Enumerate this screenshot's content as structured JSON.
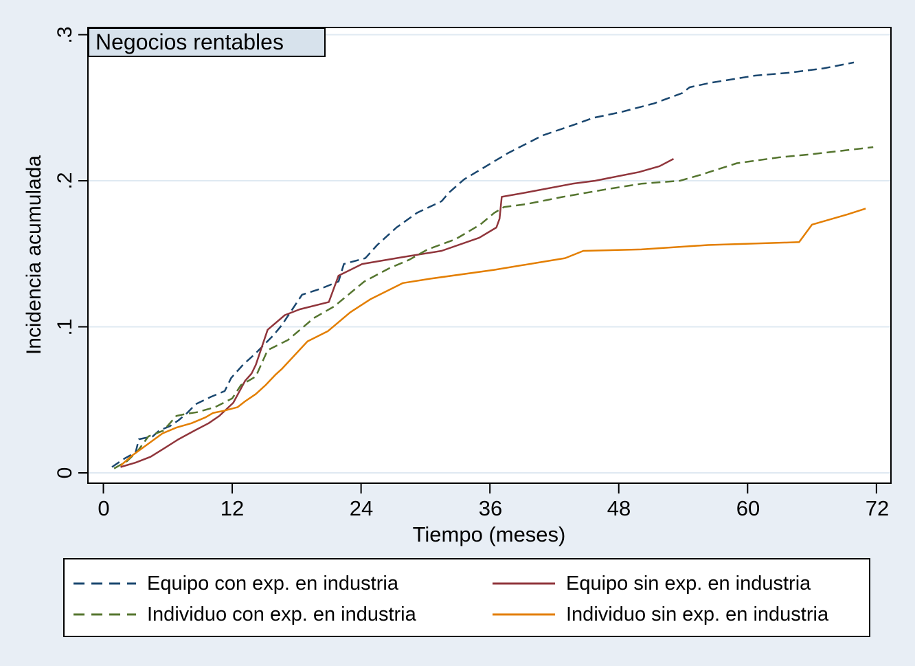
{
  "figure": {
    "title": "Negocios rentables",
    "background": "#e8eef5",
    "plot_background": "#ffffff",
    "title_box_fill": "#d7e2ec",
    "grid_color": "#dfe9f2",
    "axis_color": "#000000"
  },
  "axes": {
    "x": {
      "label": "Tiempo (meses)",
      "ticks": [
        "0",
        "12",
        "24",
        "36",
        "48",
        "60",
        "72"
      ],
      "tick_values": [
        0,
        12,
        24,
        36,
        48,
        60,
        72
      ]
    },
    "y": {
      "label": "Incidencia acumulada",
      "ticks": [
        "0",
        ".1",
        ".2",
        ".3"
      ],
      "tick_values": [
        0,
        0.1,
        0.2,
        0.3
      ]
    }
  },
  "chart_data": {
    "type": "line",
    "title": "Negocios rentables",
    "xlabel": "Tiempo (meses)",
    "ylabel": "Incidencia acumulada",
    "xlim": [
      -1.4,
      73.3
    ],
    "ylim": [
      -0.007,
      0.305
    ],
    "grid": true,
    "legend_position": "bottom",
    "legend_columns": 2,
    "series": [
      {
        "id": "equipo-con-exp",
        "name": "Equipo con exp. en industria",
        "color": "#1a476f",
        "style": "dashed",
        "points": [
          [
            0.8,
            0.004
          ],
          [
            2,
            0.01
          ],
          [
            3,
            0.014
          ],
          [
            3.3,
            0.023
          ],
          [
            4.6,
            0.025
          ],
          [
            5.2,
            0.029
          ],
          [
            6.2,
            0.032
          ],
          [
            7,
            0.036
          ],
          [
            7.8,
            0.041
          ],
          [
            8.6,
            0.047
          ],
          [
            10,
            0.052
          ],
          [
            11.3,
            0.056
          ],
          [
            11.9,
            0.065
          ],
          [
            13,
            0.074
          ],
          [
            14.2,
            0.082
          ],
          [
            15.8,
            0.094
          ],
          [
            16.6,
            0.101
          ],
          [
            17.6,
            0.112
          ],
          [
            18.5,
            0.122
          ],
          [
            20.2,
            0.126
          ],
          [
            21.9,
            0.131
          ],
          [
            22.4,
            0.143
          ],
          [
            24.4,
            0.147
          ],
          [
            25.5,
            0.156
          ],
          [
            27.3,
            0.168
          ],
          [
            29.2,
            0.178
          ],
          [
            31.5,
            0.186
          ],
          [
            32.2,
            0.192
          ],
          [
            33.6,
            0.201
          ],
          [
            35.2,
            0.208
          ],
          [
            37.7,
            0.219
          ],
          [
            40.9,
            0.231
          ],
          [
            44.1,
            0.239
          ],
          [
            45.6,
            0.243
          ],
          [
            48.2,
            0.247
          ],
          [
            51.3,
            0.253
          ],
          [
            53.9,
            0.26
          ],
          [
            54.6,
            0.264
          ],
          [
            56.5,
            0.267
          ],
          [
            60.7,
            0.272
          ],
          [
            63.9,
            0.274
          ],
          [
            67.1,
            0.277
          ],
          [
            69.9,
            0.281
          ]
        ]
      },
      {
        "id": "equipo-sin-exp",
        "name": "Equipo sin exp. en industria",
        "color": "#90353b",
        "style": "solid",
        "points": [
          [
            1.6,
            0.004
          ],
          [
            3,
            0.007
          ],
          [
            4.4,
            0.011
          ],
          [
            5.7,
            0.017
          ],
          [
            7,
            0.023
          ],
          [
            8.5,
            0.029
          ],
          [
            9.8,
            0.034
          ],
          [
            10.8,
            0.039
          ],
          [
            12.1,
            0.048
          ],
          [
            13.2,
            0.063
          ],
          [
            13.8,
            0.068
          ],
          [
            14.2,
            0.074
          ],
          [
            15.3,
            0.098
          ],
          [
            16.9,
            0.108
          ],
          [
            18.3,
            0.112
          ],
          [
            21,
            0.117
          ],
          [
            21.9,
            0.135
          ],
          [
            24.1,
            0.143
          ],
          [
            28.1,
            0.148
          ],
          [
            31.5,
            0.152
          ],
          [
            35,
            0.161
          ],
          [
            36.6,
            0.168
          ],
          [
            36.9,
            0.174
          ],
          [
            37.1,
            0.189
          ],
          [
            39.4,
            0.192
          ],
          [
            43.7,
            0.198
          ],
          [
            45.8,
            0.2
          ],
          [
            49.9,
            0.206
          ],
          [
            51.8,
            0.21
          ],
          [
            53.1,
            0.215
          ]
        ]
      },
      {
        "id": "individuo-con-exp",
        "name": "Individuo con exp. en industria",
        "color": "#55752f",
        "style": "dashed",
        "points": [
          [
            1,
            0.003
          ],
          [
            2.2,
            0.008
          ],
          [
            3.2,
            0.015
          ],
          [
            4.2,
            0.025
          ],
          [
            5.6,
            0.029
          ],
          [
            6.8,
            0.039
          ],
          [
            7.8,
            0.0405
          ],
          [
            8.7,
            0.0415
          ],
          [
            10.4,
            0.045
          ],
          [
            12,
            0.051
          ],
          [
            12.8,
            0.06
          ],
          [
            14.2,
            0.066
          ],
          [
            15.3,
            0.084
          ],
          [
            17.2,
            0.091
          ],
          [
            19.6,
            0.106
          ],
          [
            21.5,
            0.114
          ],
          [
            24.3,
            0.131
          ],
          [
            26.6,
            0.14
          ],
          [
            28.5,
            0.146
          ],
          [
            30.2,
            0.153
          ],
          [
            32.8,
            0.16
          ],
          [
            35.1,
            0.17
          ],
          [
            36.4,
            0.178
          ],
          [
            37.3,
            0.182
          ],
          [
            39.4,
            0.184
          ],
          [
            42.8,
            0.189
          ],
          [
            46.7,
            0.194
          ],
          [
            50.1,
            0.198
          ],
          [
            53.7,
            0.2
          ],
          [
            55.6,
            0.204
          ],
          [
            59,
            0.212
          ],
          [
            62.9,
            0.216
          ],
          [
            65.7,
            0.218
          ],
          [
            69.3,
            0.221
          ],
          [
            71.7,
            0.223
          ]
        ]
      },
      {
        "id": "individuo-sin-exp",
        "name": "Individuo sin exp. en industria",
        "color": "#e37e00",
        "style": "solid",
        "points": [
          [
            1.6,
            0.005
          ],
          [
            2.7,
            0.012
          ],
          [
            4.2,
            0.02
          ],
          [
            5.5,
            0.027
          ],
          [
            6.8,
            0.031
          ],
          [
            8.2,
            0.034
          ],
          [
            9.5,
            0.038
          ],
          [
            10.2,
            0.041
          ],
          [
            11.2,
            0.0425
          ],
          [
            12.5,
            0.045
          ],
          [
            13.2,
            0.049
          ],
          [
            14.2,
            0.054
          ],
          [
            15.1,
            0.06
          ],
          [
            16,
            0.067
          ],
          [
            16.6,
            0.071
          ],
          [
            19,
            0.09
          ],
          [
            20.9,
            0.097
          ],
          [
            23,
            0.11
          ],
          [
            24.9,
            0.119
          ],
          [
            27.9,
            0.13
          ],
          [
            30.5,
            0.133
          ],
          [
            36.4,
            0.139
          ],
          [
            43,
            0.147
          ],
          [
            44.7,
            0.152
          ],
          [
            50.1,
            0.153
          ],
          [
            56.3,
            0.156
          ],
          [
            64.8,
            0.158
          ],
          [
            66,
            0.17
          ],
          [
            69.3,
            0.177
          ],
          [
            71,
            0.181
          ]
        ]
      }
    ]
  }
}
